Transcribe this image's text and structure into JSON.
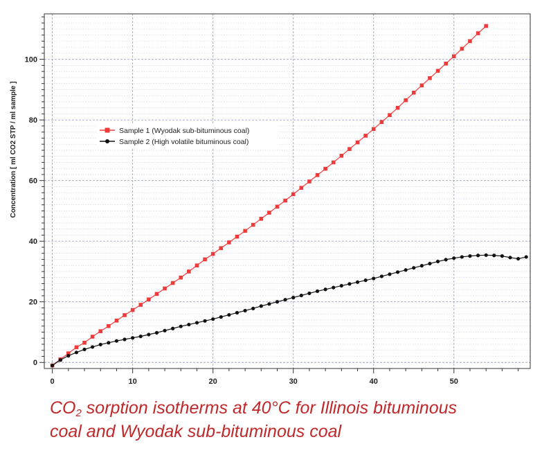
{
  "chart_data": {
    "type": "scatter",
    "title": "",
    "xlabel": "",
    "ylabel": "Concentration [ ml CO2 STP / ml sample ]",
    "xlim": [
      -1,
      59.5
    ],
    "ylim": [
      -2,
      115
    ],
    "xticks": [
      0,
      10,
      20,
      30,
      40,
      50
    ],
    "yticks": [
      0,
      20,
      40,
      60,
      80,
      100
    ],
    "grid": true,
    "legend_position": "upper-left",
    "series": [
      {
        "name": "Sample 1 (Wyodak sub-bituminous coal)",
        "color": "#ee3b3b",
        "marker": "square",
        "x": [
          0,
          1,
          2,
          3,
          4,
          5,
          6,
          7,
          8,
          9,
          10,
          11,
          12,
          13,
          14,
          15,
          16,
          17,
          18,
          19,
          20,
          21,
          22,
          23,
          24,
          25,
          26,
          27,
          28,
          29,
          30,
          31,
          32,
          33,
          34,
          35,
          36,
          37,
          38,
          39,
          40,
          41,
          42,
          43,
          44,
          45,
          46,
          47,
          48,
          49,
          50,
          51,
          52,
          53,
          54
        ],
        "y": [
          -1,
          1,
          3,
          5,
          6.5,
          8.5,
          10.3,
          12,
          13.8,
          15.6,
          17.3,
          19,
          20.8,
          22.6,
          24.4,
          26.2,
          28,
          30,
          32,
          34,
          35.8,
          37.7,
          39.6,
          41.5,
          43.4,
          45.4,
          47.4,
          49.4,
          51.4,
          53.4,
          55.5,
          57.6,
          59.7,
          61.8,
          63.9,
          66,
          68.2,
          70.4,
          72.6,
          74.8,
          77,
          79.3,
          81.6,
          84,
          86.5,
          89,
          91.4,
          93.8,
          96.2,
          98.6,
          101,
          103.5,
          106,
          108.6,
          111
        ]
      },
      {
        "name": "Sample 2 (High volatile bituminous coal)",
        "color": "#111111",
        "marker": "circle",
        "x": [
          0,
          1,
          2,
          3,
          4,
          5,
          6,
          7,
          8,
          9,
          10,
          11,
          12,
          13,
          14,
          15,
          16,
          17,
          18,
          19,
          20,
          21,
          22,
          23,
          24,
          25,
          26,
          27,
          28,
          29,
          30,
          31,
          32,
          33,
          34,
          35,
          36,
          37,
          38,
          39,
          40,
          41,
          42,
          43,
          44,
          45,
          46,
          47,
          48,
          49,
          50,
          51,
          52,
          53,
          54,
          55,
          56,
          57,
          58,
          59
        ],
        "y": [
          -1,
          0.8,
          2.2,
          3.3,
          4.3,
          5.1,
          5.9,
          6.5,
          7.1,
          7.6,
          8.1,
          8.6,
          9.2,
          9.8,
          10.5,
          11.2,
          11.9,
          12.5,
          13.1,
          13.7,
          14.3,
          15,
          15.7,
          16.4,
          17.1,
          17.8,
          18.6,
          19.3,
          20,
          20.7,
          21.4,
          22.1,
          22.8,
          23.5,
          24.1,
          24.7,
          25.3,
          25.9,
          26.5,
          27.1,
          27.7,
          28.4,
          29.1,
          29.8,
          30.5,
          31.2,
          31.9,
          32.6,
          33.3,
          33.9,
          34.4,
          34.8,
          35.1,
          35.3,
          35.4,
          35.3,
          35.1,
          34.6,
          34.2,
          34.8
        ]
      }
    ]
  },
  "caption": {
    "line1_before_sub": "CO",
    "line1_sub": "2",
    "line1_after_sub": " sorption isotherms at 40°C for Illinois bituminous",
    "line2": "coal and Wyodak sub-bituminous coal"
  }
}
